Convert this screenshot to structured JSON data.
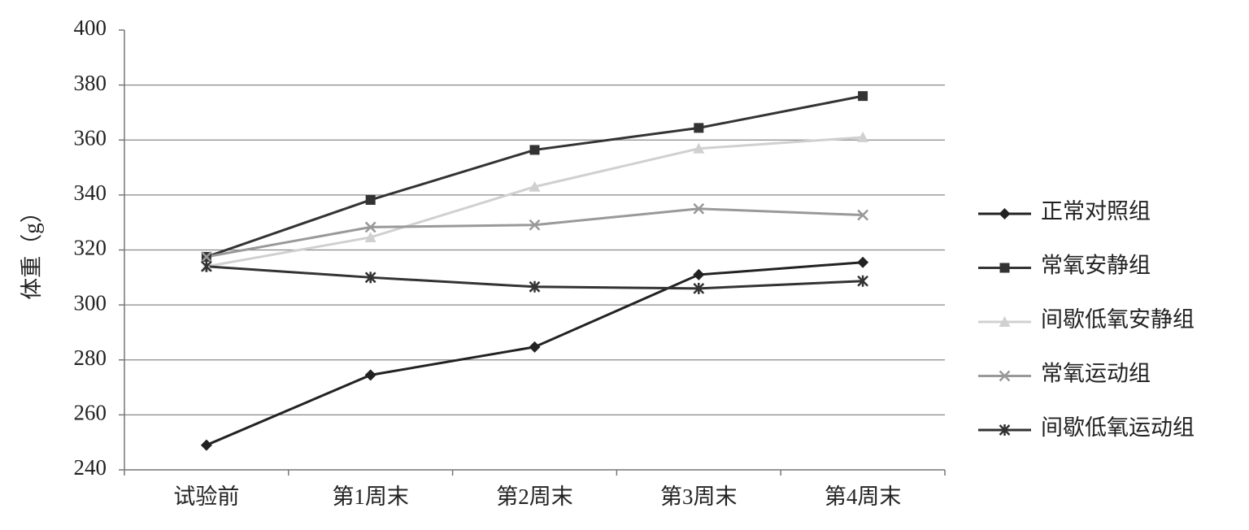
{
  "chart_data": {
    "type": "line",
    "ylabel": "体重（g）",
    "categories": [
      "试验前",
      "第1周末",
      "第2周末",
      "第3周末",
      "第4周末"
    ],
    "series": [
      {
        "name": "正常对照组",
        "color": "#222222",
        "marker": "diamond",
        "values": [
          249,
          274.5,
          284.7,
          311,
          315.5
        ]
      },
      {
        "name": "常氧安静组",
        "color": "#333333",
        "marker": "square",
        "values": [
          317.5,
          338.2,
          356.4,
          364.4,
          376
        ]
      },
      {
        "name": "间歇低氧安静组",
        "color": "#d0d0d0",
        "marker": "triangle",
        "values": [
          314,
          324.6,
          343,
          356.9,
          361
        ]
      },
      {
        "name": "常氧运动组",
        "color": "#999999",
        "marker": "x",
        "values": [
          317.5,
          328.3,
          329.1,
          335,
          332.7
        ]
      },
      {
        "name": "间歇低氧运动组",
        "color": "#333333",
        "marker": "asterisk",
        "values": [
          314,
          310,
          306.6,
          306,
          308.7
        ]
      }
    ],
    "ylim": [
      240,
      400
    ],
    "yticks": [
      240,
      260,
      280,
      300,
      320,
      340,
      360,
      380,
      400
    ],
    "grid": true,
    "legend": "right"
  }
}
